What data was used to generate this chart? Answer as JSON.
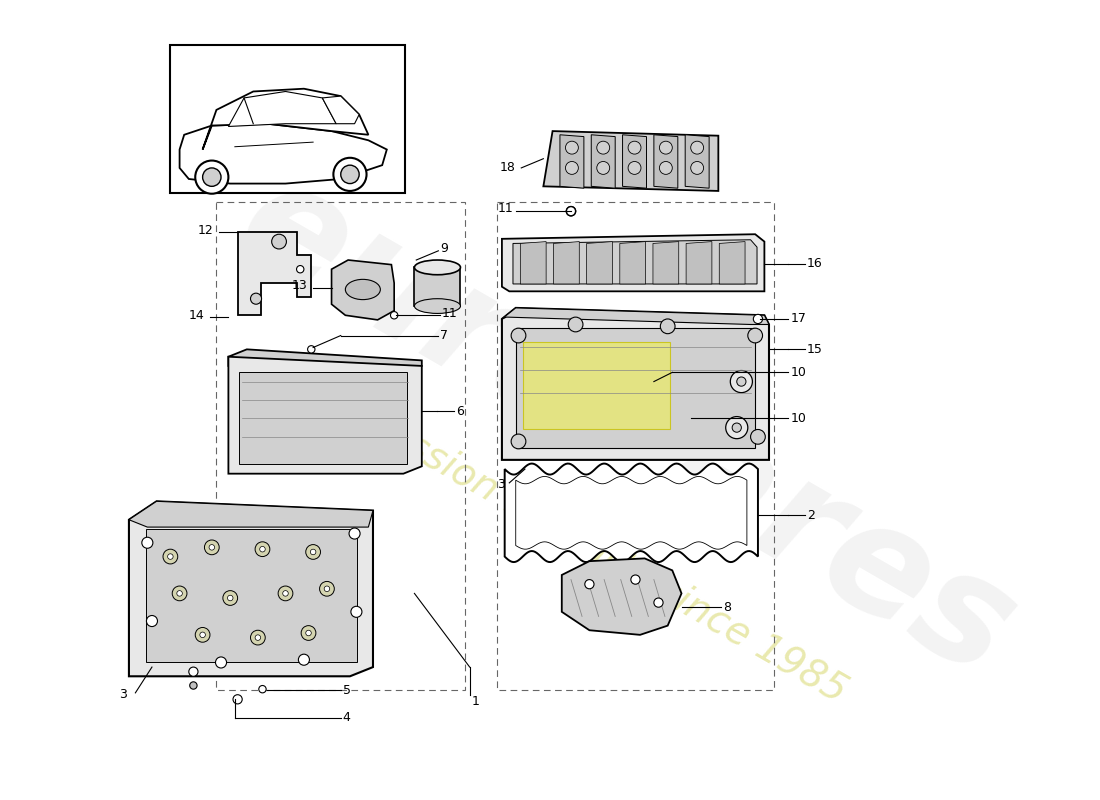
{
  "bg": "#ffffff",
  "lc": "#000000",
  "gray1": "#e8e8e8",
  "gray2": "#d0d0d0",
  "gray3": "#c0c0c0",
  "yellow": "#e8e870",
  "wm_color1": "#c8c8c8",
  "wm_color2": "#d4d460",
  "figsize": [
    11.0,
    8.0
  ],
  "dpi": 100
}
